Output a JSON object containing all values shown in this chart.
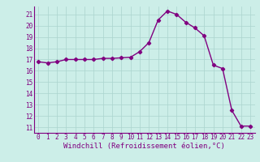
{
  "x_values": [
    0,
    1,
    2,
    3,
    4,
    5,
    6,
    7,
    8,
    9,
    10,
    11,
    12,
    13,
    14,
    15,
    16,
    17,
    18,
    19,
    20,
    21,
    22,
    23
  ],
  "y_values": [
    16.8,
    16.7,
    16.8,
    17.0,
    17.0,
    17.0,
    17.0,
    17.1,
    17.1,
    17.15,
    17.2,
    17.7,
    18.5,
    20.5,
    21.3,
    21.0,
    20.3,
    19.8,
    19.1,
    16.5,
    16.2,
    12.5,
    11.1,
    11.1
  ],
  "line_color": "#800080",
  "marker": "D",
  "markersize": 2.2,
  "linewidth": 1.0,
  "xlabel": "Windchill (Refroidissement éolien,°C)",
  "xlim": [
    -0.5,
    23.5
  ],
  "ylim": [
    10.5,
    21.7
  ],
  "yticks": [
    11,
    12,
    13,
    14,
    15,
    16,
    17,
    18,
    19,
    20,
    21
  ],
  "xticks": [
    0,
    1,
    2,
    3,
    4,
    5,
    6,
    7,
    8,
    9,
    10,
    11,
    12,
    13,
    14,
    15,
    16,
    17,
    18,
    19,
    20,
    21,
    22,
    23
  ],
  "bg_color": "#cceee8",
  "grid_color": "#aad4ce",
  "text_color": "#800080",
  "tick_fontsize": 5.5,
  "xlabel_fontsize": 6.5,
  "spine_color": "#800080"
}
